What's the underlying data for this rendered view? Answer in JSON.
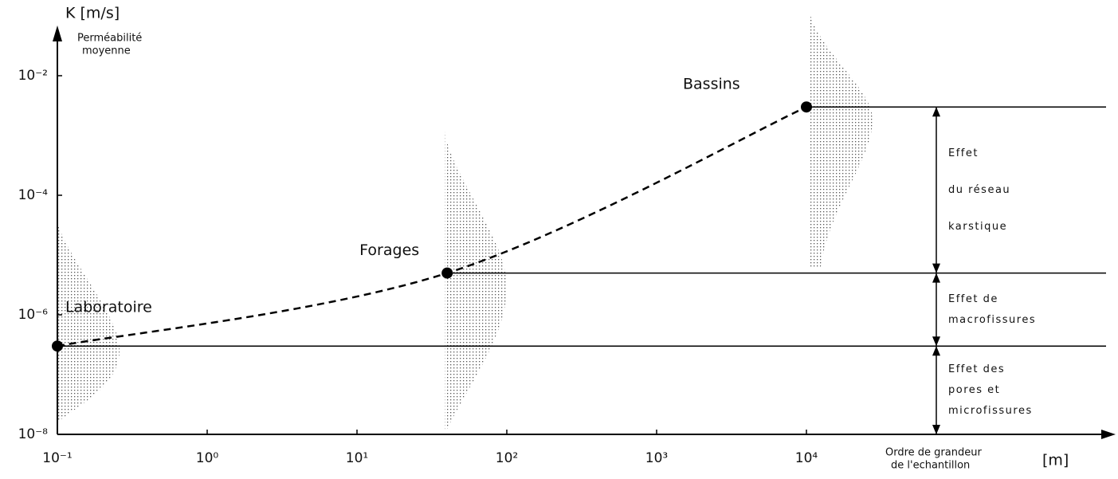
{
  "chart_data": {
    "type": "line",
    "y_label": "K [m/s]",
    "y_sublabel": [
      "Perméabilité",
      "moyenne"
    ],
    "x_label": [
      "Ordre de grandeur",
      "de l'echantillon"
    ],
    "x_unit": "[m]",
    "log_x": true,
    "log_y": true,
    "xlim": [
      0.1,
      1000000
    ],
    "ylim": [
      1e-08,
      0.1
    ],
    "xticks": [
      {
        "value": 0.1,
        "label": "10⁻¹"
      },
      {
        "value": 1,
        "label": "10⁰"
      },
      {
        "value": 10,
        "label": "10¹"
      },
      {
        "value": 100,
        "label": "10²"
      },
      {
        "value": 1000,
        "label": "10³"
      },
      {
        "value": 10000,
        "label": "10⁴"
      }
    ],
    "yticks": [
      {
        "value": 1e-08,
        "label": "10⁻⁸"
      },
      {
        "value": 1e-06,
        "label": "10⁻⁶"
      },
      {
        "value": 0.0001,
        "label": "10⁻⁴"
      },
      {
        "value": 0.01,
        "label": "10⁻²"
      }
    ],
    "series": [
      {
        "color": "#000000",
        "x": [
          0.1,
          40,
          10000
        ],
        "values": [
          3e-07,
          5e-06,
          0.003
        ],
        "point_labels": [
          "Laboratoire",
          "Forages",
          "Bassins"
        ]
      }
    ],
    "annotations": [
      [
        "Effet des",
        "pores  et",
        "microfissures"
      ],
      [
        "Effet  de",
        "macrofissures"
      ],
      [
        "Effet",
        "du  réseau",
        "karstique"
      ]
    ]
  }
}
